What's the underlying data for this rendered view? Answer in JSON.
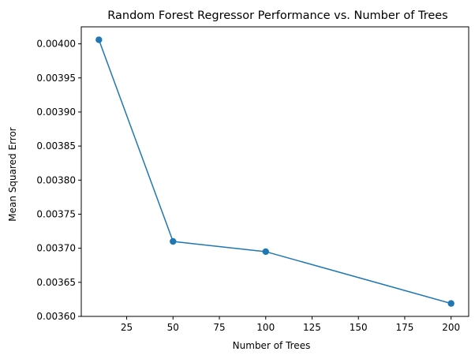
{
  "chart_data": {
    "type": "line",
    "title": "Random Forest Regressor Performance vs. Number of Trees",
    "xlabel": "Number of Trees",
    "ylabel": "Mean Squared Error",
    "x": [
      10,
      50,
      100,
      200
    ],
    "series": [
      {
        "values": [
          0.004006,
          0.00371,
          0.003695,
          0.003619
        ]
      }
    ],
    "xlim": [
      0.5,
      209.5
    ],
    "ylim": [
      0.0036,
      0.004025
    ],
    "xticks": [
      25,
      50,
      75,
      100,
      125,
      150,
      175,
      200
    ],
    "yticks": [
      0.0036,
      0.00365,
      0.0037,
      0.00375,
      0.0038,
      0.00385,
      0.0039,
      0.00395,
      0.004
    ],
    "ytick_labels": [
      "0.00360",
      "0.00365",
      "0.00370",
      "0.00375",
      "0.00380",
      "0.00385",
      "0.00390",
      "0.00395",
      "0.00400"
    ],
    "grid": false,
    "legend": false,
    "marker": "circle",
    "colors": {
      "line": "#1f77b4",
      "axes": "#000000"
    }
  }
}
